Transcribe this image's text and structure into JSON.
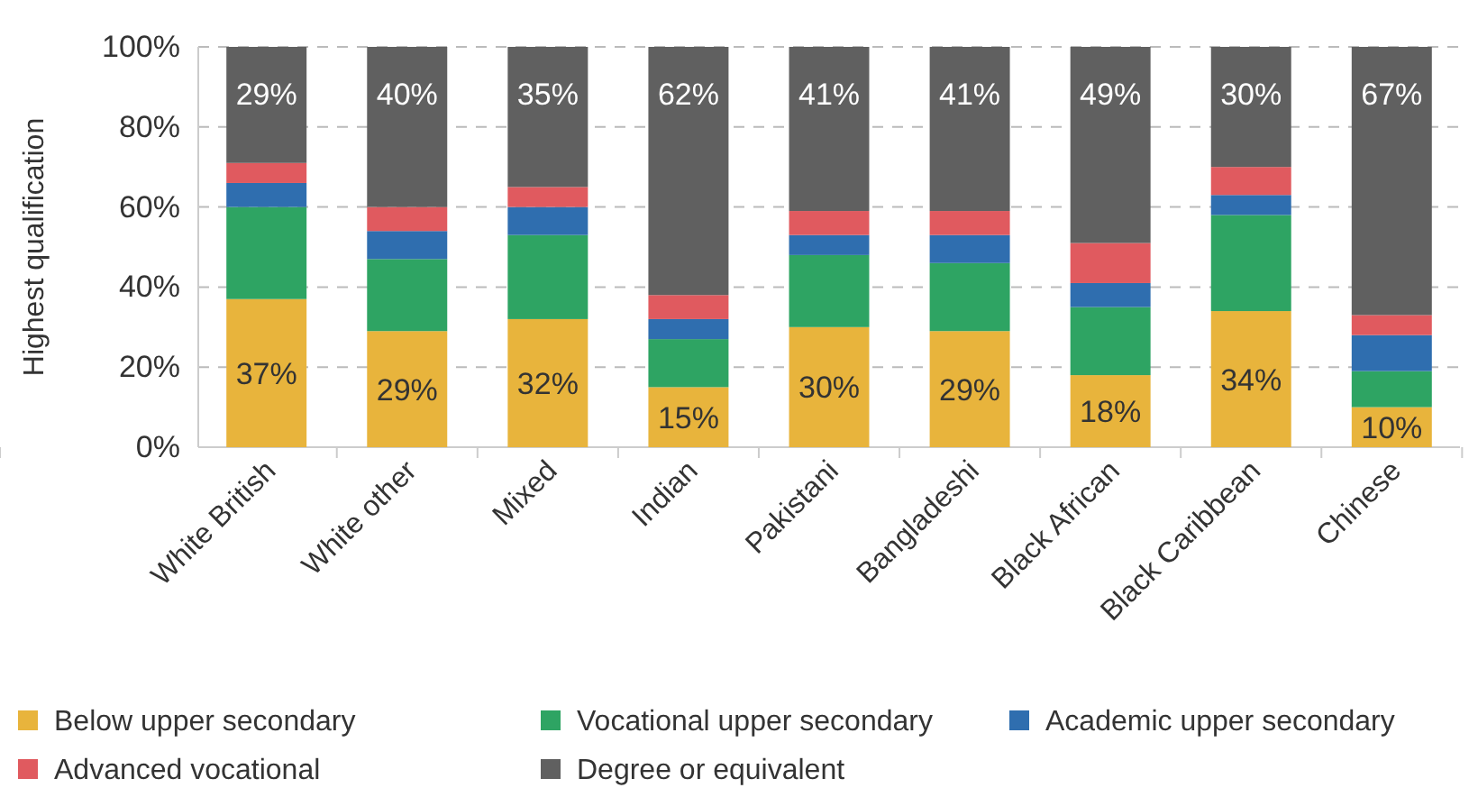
{
  "chart_data": {
    "type": "bar",
    "stacked": true,
    "ylabel": "Highest qualification",
    "categories": [
      "White British",
      "White other",
      "Mixed",
      "Indian",
      "Pakistani",
      "Bangladeshi",
      "Black African",
      "Black Caribbean",
      "Chinese"
    ],
    "series": [
      {
        "name": "Below upper secondary",
        "color": "#e8b43c",
        "values": [
          37,
          29,
          32,
          15,
          30,
          29,
          18,
          34,
          10
        ],
        "value_labels": [
          "37%",
          "29%",
          "32%",
          "15%",
          "30%",
          "29%",
          "18%",
          "34%",
          "10%"
        ]
      },
      {
        "name": "Vocational upper secondary",
        "color": "#2ea463",
        "values": [
          23,
          18,
          21,
          12,
          18,
          17,
          17,
          24,
          9
        ]
      },
      {
        "name": "Academic upper secondary",
        "color": "#2f6eaf",
        "values": [
          6,
          7,
          7,
          5,
          5,
          7,
          6,
          5,
          9
        ]
      },
      {
        "name": "Advanced vocational",
        "color": "#e05a5f",
        "values": [
          5,
          6,
          5,
          6,
          6,
          6,
          10,
          7,
          5
        ]
      },
      {
        "name": "Degree or equivalent",
        "color": "#606060",
        "values": [
          29,
          40,
          35,
          62,
          41,
          41,
          49,
          30,
          67
        ],
        "value_labels": [
          "29%",
          "40%",
          "35%",
          "62%",
          "41%",
          "41%",
          "49%",
          "30%",
          "67%"
        ]
      }
    ],
    "ylim": [
      0,
      100
    ],
    "yticks": [
      {
        "value": 0,
        "label": "0%"
      },
      {
        "value": 20,
        "label": "20%"
      },
      {
        "value": 40,
        "label": "40%"
      },
      {
        "value": 60,
        "label": "60%"
      },
      {
        "value": 80,
        "label": "80%"
      },
      {
        "value": 100,
        "label": "100%"
      }
    ],
    "grid": "y",
    "legend": "bottom"
  }
}
